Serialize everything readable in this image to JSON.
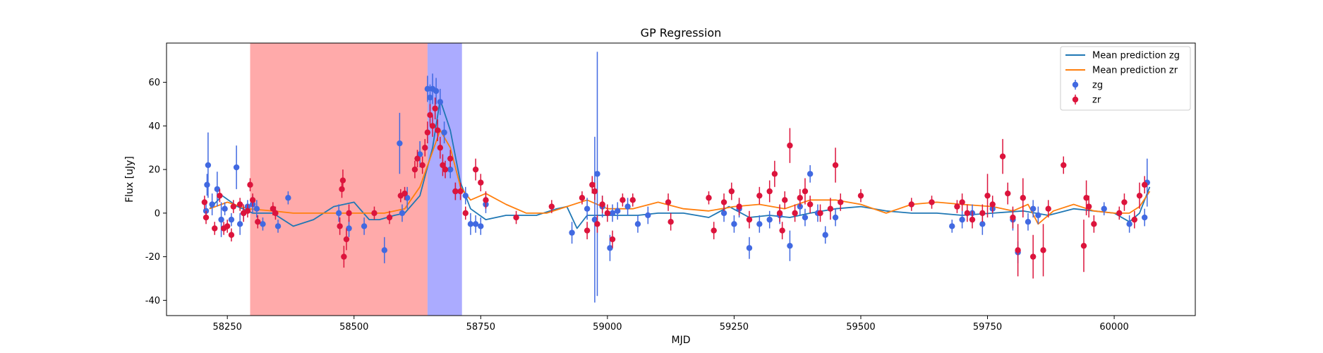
{
  "chart_data": {
    "type": "scatter",
    "title": "GP Regression",
    "xlabel": "MJD",
    "ylabel": "Flux [uJy]",
    "xlim": [
      58130,
      60160
    ],
    "ylim": [
      -47,
      78
    ],
    "xticks": [
      58250,
      58500,
      58750,
      59000,
      59250,
      59500,
      59750,
      60000
    ],
    "yticks": [
      -40,
      -20,
      0,
      20,
      40,
      60
    ],
    "grid": false,
    "legend_position": "top-right",
    "shaded_regions": [
      {
        "x0": 58295,
        "x1": 58645,
        "color": "#ff5555",
        "opacity": 0.5
      },
      {
        "x0": 58645,
        "x1": 58713,
        "color": "#6666ff",
        "opacity": 0.55
      }
    ],
    "colors": {
      "zg_line": "#1f77b4",
      "zr_line": "#ff7f0e",
      "zg_points": "#4169e1",
      "zr_points": "#dc143c"
    },
    "lines": [
      {
        "name": "Mean prediction zg",
        "x": [
          58215,
          58240,
          58270,
          58300,
          58340,
          58380,
          58420,
          58460,
          58500,
          58530,
          58550,
          58580,
          58600,
          58630,
          58655,
          58670,
          58690,
          58710,
          58730,
          58760,
          58800,
          58860,
          58900,
          58920,
          58940,
          58960,
          58990,
          59020,
          59060,
          59100,
          59150,
          59200,
          59240,
          59280,
          59320,
          59360,
          59400,
          59450,
          59500,
          59550,
          59600,
          59650,
          59700,
          59760,
          59820,
          59870,
          59920,
          59960,
          60000,
          60030,
          60050,
          60070
        ],
        "y": [
          2,
          8,
          3,
          0,
          0,
          -6,
          -3,
          3,
          5,
          -3,
          -3,
          -1,
          0,
          8,
          30,
          52,
          38,
          14,
          2,
          -3,
          -1,
          -1,
          2,
          3,
          -7,
          -1,
          -1,
          -1,
          -1,
          0,
          0,
          -2,
          3,
          -2,
          -1,
          -2,
          0,
          2,
          3,
          1,
          0,
          0,
          -1,
          0,
          1,
          -1,
          2,
          1,
          0,
          -4,
          0,
          12
        ]
      },
      {
        "name": "Mean prediction zr",
        "x": [
          58215,
          58250,
          58290,
          58340,
          58380,
          58440,
          58500,
          58560,
          58600,
          58630,
          58650,
          58670,
          58690,
          58710,
          58730,
          58760,
          58800,
          58840,
          58880,
          58920,
          58960,
          59000,
          59050,
          59100,
          59150,
          59200,
          59250,
          59300,
          59350,
          59400,
          59450,
          59500,
          59550,
          59600,
          59650,
          59700,
          59760,
          59800,
          59830,
          59850,
          59880,
          59920,
          59960,
          60000,
          60030,
          60050,
          60070
        ],
        "y": [
          2,
          5,
          2,
          1,
          0,
          0,
          0,
          0,
          2,
          12,
          25,
          38,
          30,
          12,
          6,
          9,
          4,
          0,
          0,
          3,
          6,
          2,
          2,
          5,
          2,
          1,
          3,
          4,
          2,
          6,
          6,
          4,
          0,
          4,
          5,
          4,
          3,
          1,
          4,
          -5,
          1,
          4,
          1,
          0,
          0,
          3,
          10
        ]
      }
    ],
    "series": [
      {
        "name": "zg",
        "x": [
          58208,
          58210,
          58212,
          58220,
          58230,
          58238,
          58245,
          58258,
          58268,
          58275,
          58282,
          58290,
          58300,
          58308,
          58320,
          58350,
          58370,
          58470,
          58490,
          58520,
          58560,
          58590,
          58595,
          58605,
          58630,
          58645,
          58650,
          58655,
          58662,
          58670,
          58678,
          58690,
          58700,
          58720,
          58730,
          58740,
          58750,
          58760,
          58930,
          58960,
          58975,
          58980,
          58990,
          59005,
          59010,
          59020,
          59040,
          59060,
          59080,
          59230,
          59250,
          59260,
          59280,
          59300,
          59320,
          59340,
          59360,
          59380,
          59390,
          59400,
          59415,
          59430,
          59450,
          59680,
          59700,
          59720,
          59740,
          59760,
          59800,
          59810,
          59830,
          59840,
          59850,
          59980,
          60030,
          60060,
          60065
        ],
        "y": [
          1,
          13,
          22,
          4,
          11,
          -3,
          2,
          -3,
          21,
          -5,
          0,
          3,
          4,
          2,
          -5,
          -6,
          7,
          0,
          -7,
          -6,
          -17,
          32,
          0,
          7,
          27,
          57,
          53,
          57,
          56,
          51,
          37,
          20,
          10,
          8,
          -5,
          -5,
          -6,
          4,
          -9,
          2,
          -3,
          18,
          3,
          -16,
          0,
          1,
          3,
          -5,
          -1,
          0,
          -5,
          2,
          -16,
          -5,
          -3,
          -1,
          -15,
          3,
          -2,
          18,
          0,
          -10,
          -2,
          -6,
          -3,
          0,
          -5,
          2,
          -3,
          -18,
          -4,
          2,
          -1,
          2,
          -5,
          -2,
          14
        ],
        "err": [
          3,
          5,
          15,
          5,
          8,
          8,
          3,
          3,
          10,
          5,
          3,
          3,
          4,
          4,
          3,
          3,
          3,
          4,
          4,
          4,
          6,
          14,
          4,
          5,
          6,
          6,
          6,
          7,
          6,
          6,
          5,
          4,
          4,
          4,
          5,
          4,
          4,
          4,
          5,
          5,
          38,
          56,
          5,
          6,
          4,
          4,
          4,
          4,
          4,
          4,
          4,
          4,
          5,
          4,
          4,
          4,
          7,
          4,
          4,
          4,
          4,
          4,
          4,
          3,
          4,
          4,
          5,
          4,
          5,
          5,
          4,
          4,
          4,
          3,
          4,
          4,
          11
        ]
      },
      {
        "name": "zr",
        "x": [
          58205,
          58208,
          58225,
          58235,
          58243,
          58250,
          58258,
          58262,
          58275,
          58282,
          58290,
          58295,
          58300,
          58310,
          58340,
          58345,
          58472,
          58476,
          58478,
          58480,
          58485,
          58490,
          58540,
          58570,
          58592,
          58600,
          58620,
          58625,
          58635,
          58640,
          58645,
          58650,
          58655,
          58660,
          58665,
          58670,
          58675,
          58680,
          58690,
          58700,
          58710,
          58720,
          58740,
          58750,
          58760,
          58820,
          58890,
          58950,
          58960,
          58970,
          58975,
          58980,
          58990,
          59000,
          59010,
          59030,
          59050,
          59120,
          59125,
          59200,
          59210,
          59230,
          59245,
          59260,
          59280,
          59300,
          59320,
          59330,
          59340,
          59345,
          59350,
          59360,
          59370,
          59380,
          59390,
          59400,
          59420,
          59440,
          59450,
          59460,
          59500,
          59600,
          59640,
          59690,
          59700,
          59710,
          59720,
          59740,
          59750,
          59760,
          59780,
          59790,
          59800,
          59810,
          59820,
          59840,
          59860,
          59870,
          59900,
          59940,
          59945,
          59950,
          59960,
          60010,
          60020,
          60040,
          60050,
          60060
        ],
        "y": [
          5,
          -2,
          -7,
          8,
          -7,
          -6,
          -10,
          3,
          4,
          0,
          1,
          13,
          6,
          -4,
          2,
          0,
          -6,
          11,
          15,
          -20,
          -12,
          0,
          0,
          -2,
          8,
          9,
          20,
          25,
          22,
          30,
          37,
          45,
          40,
          48,
          38,
          30,
          22,
          20,
          25,
          10,
          10,
          0,
          20,
          14,
          6,
          -2,
          3,
          7,
          -8,
          13,
          10,
          -5,
          4,
          0,
          -12,
          6,
          6,
          5,
          -4,
          7,
          -8,
          5,
          10,
          3,
          -3,
          8,
          10,
          18,
          0,
          -8,
          6,
          31,
          0,
          7,
          10,
          4,
          0,
          2,
          22,
          5,
          8,
          4,
          5,
          3,
          5,
          0,
          -3,
          0,
          8,
          4,
          26,
          9,
          -2,
          -17,
          7,
          -20,
          -17,
          2,
          22,
          -15,
          7,
          3,
          -5,
          0,
          5,
          -3,
          8,
          13
        ],
        "err": [
          3,
          3,
          3,
          3,
          3,
          3,
          3,
          3,
          3,
          4,
          3,
          3,
          3,
          3,
          3,
          3,
          4,
          4,
          5,
          5,
          5,
          4,
          3,
          3,
          3,
          3,
          4,
          4,
          4,
          4,
          5,
          5,
          5,
          5,
          5,
          5,
          5,
          4,
          4,
          4,
          4,
          3,
          5,
          4,
          4,
          3,
          3,
          3,
          4,
          4,
          4,
          4,
          4,
          4,
          4,
          3,
          3,
          4,
          4,
          3,
          4,
          4,
          4,
          4,
          4,
          4,
          5,
          6,
          4,
          4,
          4,
          8,
          4,
          4,
          6,
          4,
          4,
          5,
          8,
          4,
          3,
          3,
          3,
          3,
          4,
          4,
          4,
          4,
          10,
          4,
          8,
          5,
          5,
          12,
          9,
          10,
          12,
          4,
          4,
          12,
          8,
          5,
          4,
          3,
          4,
          4,
          6,
          4
        ]
      }
    ]
  }
}
